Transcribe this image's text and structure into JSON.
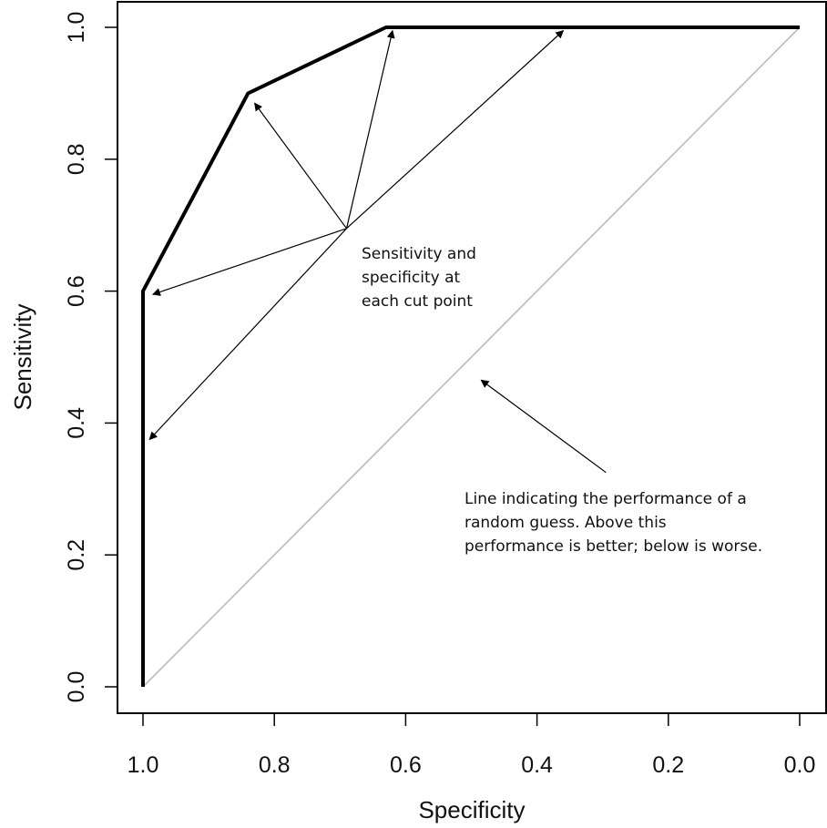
{
  "chart_data": {
    "type": "line",
    "xlabel": "Specificity",
    "ylabel": "Sensitivity",
    "xlim": [
      1.0,
      0.0
    ],
    "ylim": [
      0.0,
      1.0
    ],
    "x_reversed": true,
    "grid": false,
    "legend": "none",
    "xticks": [
      "1.0",
      "0.8",
      "0.6",
      "0.4",
      "0.2",
      "0.0"
    ],
    "yticks": [
      "0.0",
      "0.2",
      "0.4",
      "0.6",
      "0.8",
      "1.0"
    ],
    "series": [
      {
        "style": "roc-curve",
        "color": "#000000",
        "x": [
          1.0,
          1.0,
          0.84,
          0.63,
          0.0
        ],
        "y": [
          0.0,
          0.6,
          0.9,
          1.0,
          1.0
        ]
      },
      {
        "style": "reference-diagonal",
        "color": "#c0c0c0",
        "x": [
          1.0,
          0.0
        ],
        "y": [
          0.0,
          1.0
        ]
      }
    ],
    "annotations": [
      {
        "lines": [
          "Sensitivity and",
          "specificity at",
          "each cut point"
        ],
        "origin": [
          0.69,
          0.695
        ],
        "arrow_targets": [
          [
            0.83,
            0.885
          ],
          [
            0.62,
            0.995
          ],
          [
            0.36,
            0.995
          ],
          [
            0.985,
            0.595
          ],
          [
            0.99,
            0.375
          ]
        ]
      },
      {
        "lines": [
          "Line indicating the performance of a",
          "random guess. Above this",
          "performance is better; below is worse."
        ],
        "origin": [
          0.295,
          0.325
        ],
        "arrow_targets": [
          [
            0.485,
            0.465
          ]
        ]
      }
    ]
  }
}
